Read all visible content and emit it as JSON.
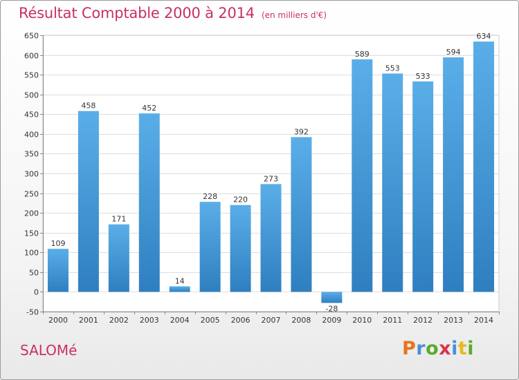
{
  "header": {
    "title": "Résultat Comptable 2000 à 2014",
    "subtitle": "(en milliers d'€)"
  },
  "footer": {
    "town": "SALOMé",
    "logo": "Proxiti",
    "logo_colors": [
      "#e8731c",
      "#4a8fd6",
      "#5aab2e",
      "#d8344e",
      "#4a8fd6",
      "#e8b91c",
      "#5aab2e"
    ]
  },
  "colors": {
    "bar_light": "#5aaee8",
    "bar_dark": "#2f7fc0",
    "title": "#c8315f"
  },
  "chart_data": {
    "type": "bar",
    "title": "Résultat Comptable 2000 à 2014",
    "categories": [
      "2000",
      "2001",
      "2002",
      "2003",
      "2004",
      "2005",
      "2006",
      "2007",
      "2008",
      "2009",
      "2010",
      "2011",
      "2012",
      "2013",
      "2014"
    ],
    "values": [
      109,
      458,
      171,
      452,
      14,
      228,
      220,
      273,
      392,
      -28,
      589,
      553,
      533,
      594,
      634
    ],
    "ylim": [
      -50,
      650
    ],
    "yticks": [
      -50,
      0,
      50,
      100,
      150,
      200,
      250,
      300,
      350,
      400,
      450,
      500,
      550,
      600,
      650
    ],
    "grid": true,
    "xlabel": "",
    "ylabel": ""
  }
}
